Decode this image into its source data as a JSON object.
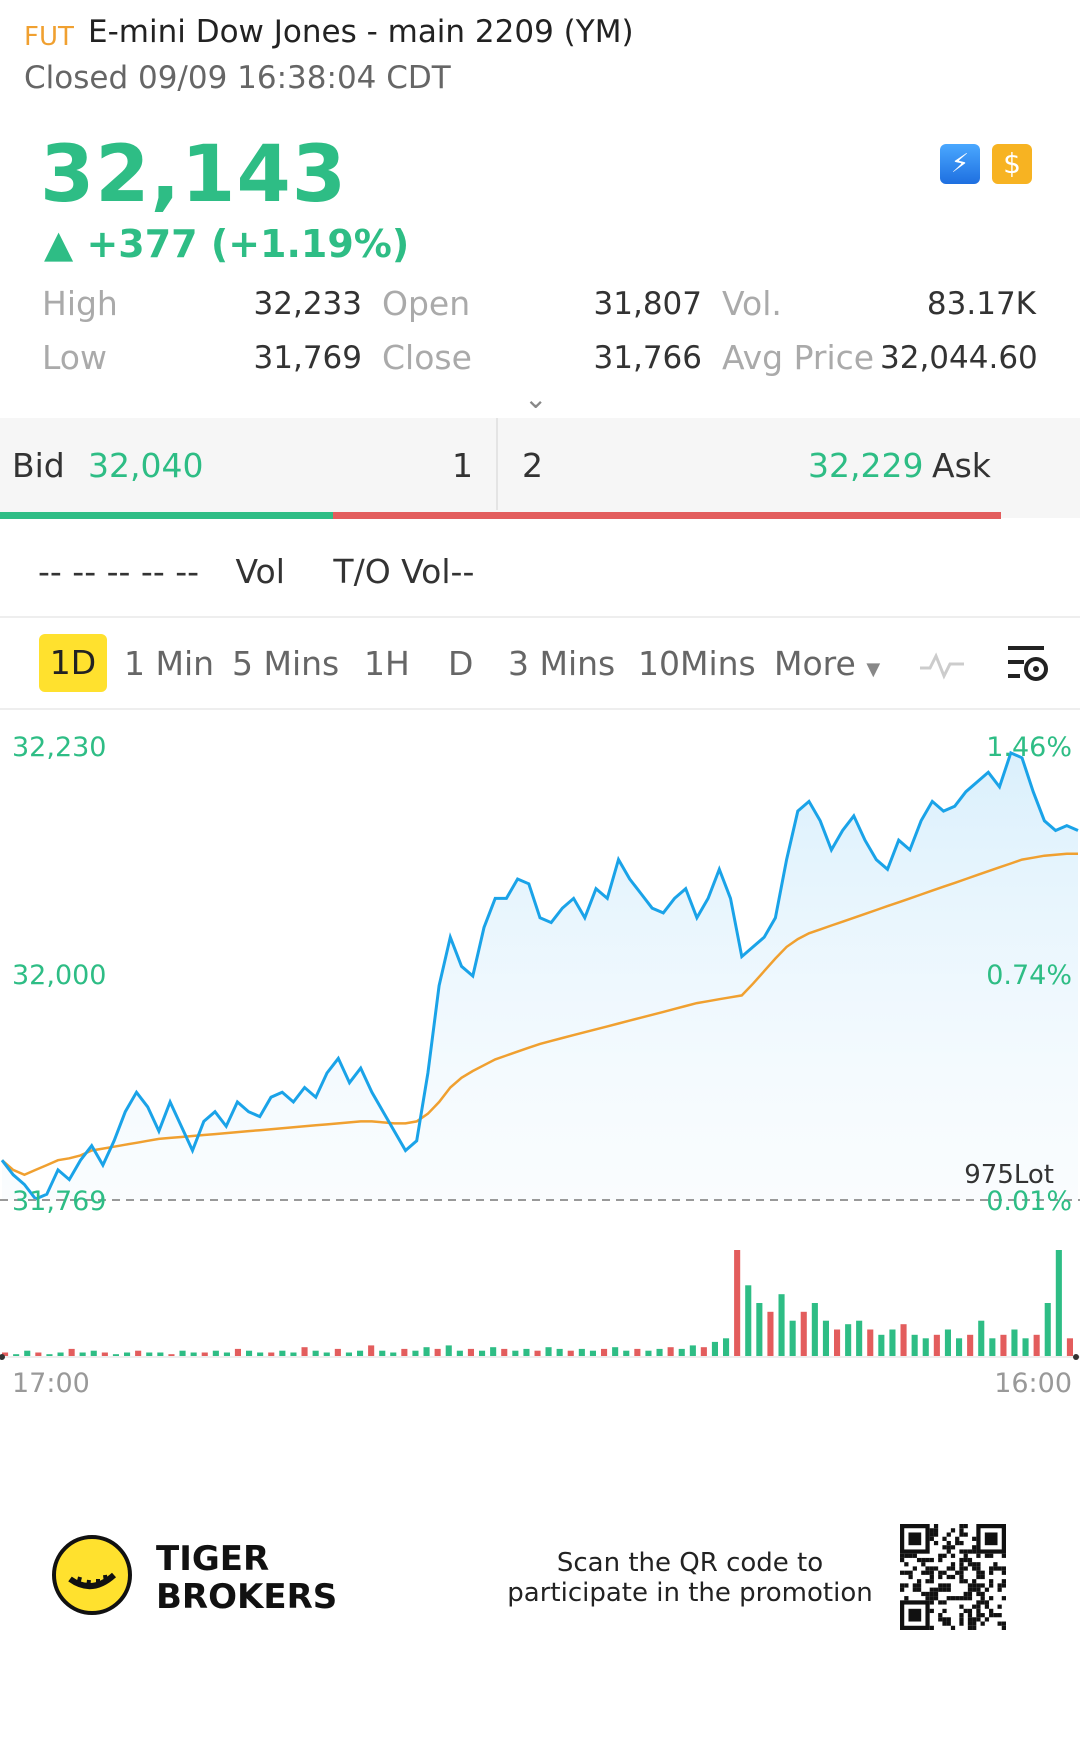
{
  "header": {
    "tag": "FUT",
    "title": "E-mini Dow Jones - main 2209 (YM)",
    "status": "Closed 09/09 16:38:04 CDT"
  },
  "quote": {
    "price": "32,143",
    "change": "▲ +377 (+1.19%)",
    "icons": [
      "lightning-icon",
      "dollar-icon"
    ],
    "stats": {
      "high_label": "High",
      "high": "32,233",
      "low_label": "Low",
      "low": "31,769",
      "open_label": "Open",
      "open": "31,807",
      "close_label": "Close",
      "close": "31,766",
      "vol_label": "Vol.",
      "vol": "83.17K",
      "avg_label": "Avg Price",
      "avg": "32,044.60"
    }
  },
  "orderbook": {
    "bid_label": "Bid",
    "bid": "32,040",
    "bid_qty": "1",
    "ask_qty": "2",
    "ask": "32,229",
    "ask_label": "Ask",
    "bid_ratio": 0.333
  },
  "trades": {
    "placeholder": "-- -- -- -- --",
    "vol_label": "Vol",
    "to_vol": "T/O Vol--"
  },
  "tabs": [
    "1D",
    "1 Min",
    "5 Mins",
    "1H",
    "D",
    "3 Mins",
    "10Mins",
    "More"
  ],
  "active_tab": "1D",
  "chart_data": {
    "type": "line",
    "y_left_ticks": [
      "32,230",
      "32,000"
    ],
    "y_right_ticks": [
      "1.46%",
      "0.74%",
      "0.01%"
    ],
    "low_marker": "31,769",
    "volume_label": "975Lot",
    "x_ticks": [
      "17:00",
      "16:00"
    ],
    "ylim": [
      31769,
      32233
    ],
    "series": [
      {
        "values": [
          31810,
          31795,
          31785,
          31770,
          31775,
          31800,
          31790,
          31810,
          31825,
          31805,
          31830,
          31860,
          31880,
          31865,
          31840,
          31870,
          31845,
          31820,
          31850,
          31860,
          31845,
          31870,
          31860,
          31855,
          31875,
          31880,
          31870,
          31885,
          31875,
          31900,
          31915,
          31890,
          31905,
          31880,
          31860,
          31840,
          31820,
          31830,
          31900,
          31990,
          32040,
          32010,
          32000,
          32050,
          32080,
          32080,
          32100,
          32095,
          32060,
          32055,
          32070,
          32080,
          32060,
          32090,
          32080,
          32120,
          32100,
          32085,
          32070,
          32065,
          32080,
          32090,
          32060,
          32080,
          32110,
          32080,
          32020,
          32030,
          32040,
          32060,
          32120,
          32170,
          32180,
          32160,
          32130,
          32150,
          32165,
          32140,
          32120,
          32110,
          32140,
          32130,
          32160,
          32180,
          32170,
          32175,
          32190,
          32200,
          32210,
          32195,
          32230,
          32225,
          32190,
          32160,
          32150,
          32155,
          32150
        ]
      },
      {
        "values": [
          31810,
          31800,
          31795,
          31800,
          31805,
          31810,
          31812,
          31815,
          31820,
          31822,
          31824,
          31826,
          31828,
          31830,
          31832,
          31833,
          31834,
          31835,
          31836,
          31837,
          31838,
          31839,
          31840,
          31841,
          31842,
          31843,
          31844,
          31845,
          31846,
          31847,
          31848,
          31849,
          31850,
          31850,
          31849,
          31848,
          31848,
          31850,
          31858,
          31870,
          31885,
          31895,
          31902,
          31908,
          31914,
          31918,
          31922,
          31926,
          31930,
          31933,
          31936,
          31939,
          31942,
          31945,
          31948,
          31951,
          31954,
          31957,
          31960,
          31963,
          31966,
          31969,
          31972,
          31974,
          31976,
          31978,
          31980,
          31992,
          32005,
          32018,
          32030,
          32038,
          32044,
          32048,
          32052,
          32056,
          32060,
          32064,
          32068,
          32072,
          32076,
          32080,
          32084,
          32088,
          32092,
          32096,
          32100,
          32104,
          32108,
          32112,
          32116,
          32120,
          32122,
          32124,
          32125,
          32126,
          32126
        ]
      }
    ],
    "volume": [
      2,
      1,
      3,
      2,
      1,
      2,
      4,
      2,
      3,
      2,
      1,
      2,
      3,
      2,
      2,
      1,
      3,
      2,
      2,
      3,
      2,
      4,
      3,
      2,
      2,
      3,
      2,
      5,
      3,
      2,
      4,
      2,
      3,
      6,
      3,
      2,
      4,
      3,
      5,
      4,
      6,
      3,
      4,
      3,
      5,
      4,
      3,
      4,
      3,
      5,
      4,
      3,
      4,
      3,
      4,
      5,
      3,
      4,
      3,
      4,
      5,
      4,
      6,
      5,
      8,
      10,
      60,
      40,
      30,
      25,
      35,
      20,
      25,
      30,
      20,
      15,
      18,
      20,
      15,
      12,
      15,
      18,
      12,
      10,
      12,
      15,
      10,
      12,
      20,
      10,
      12,
      15,
      10,
      12,
      30,
      60,
      10
    ],
    "colors": {
      "price": "#1aa3e8",
      "avg": "#f0a030",
      "up": "#2ebd85",
      "down": "#e35d5d"
    }
  },
  "footer": {
    "brand_line1": "TIGER",
    "brand_line2": "BROKERS",
    "promo": "Scan the QR code to participate in the promotion"
  }
}
